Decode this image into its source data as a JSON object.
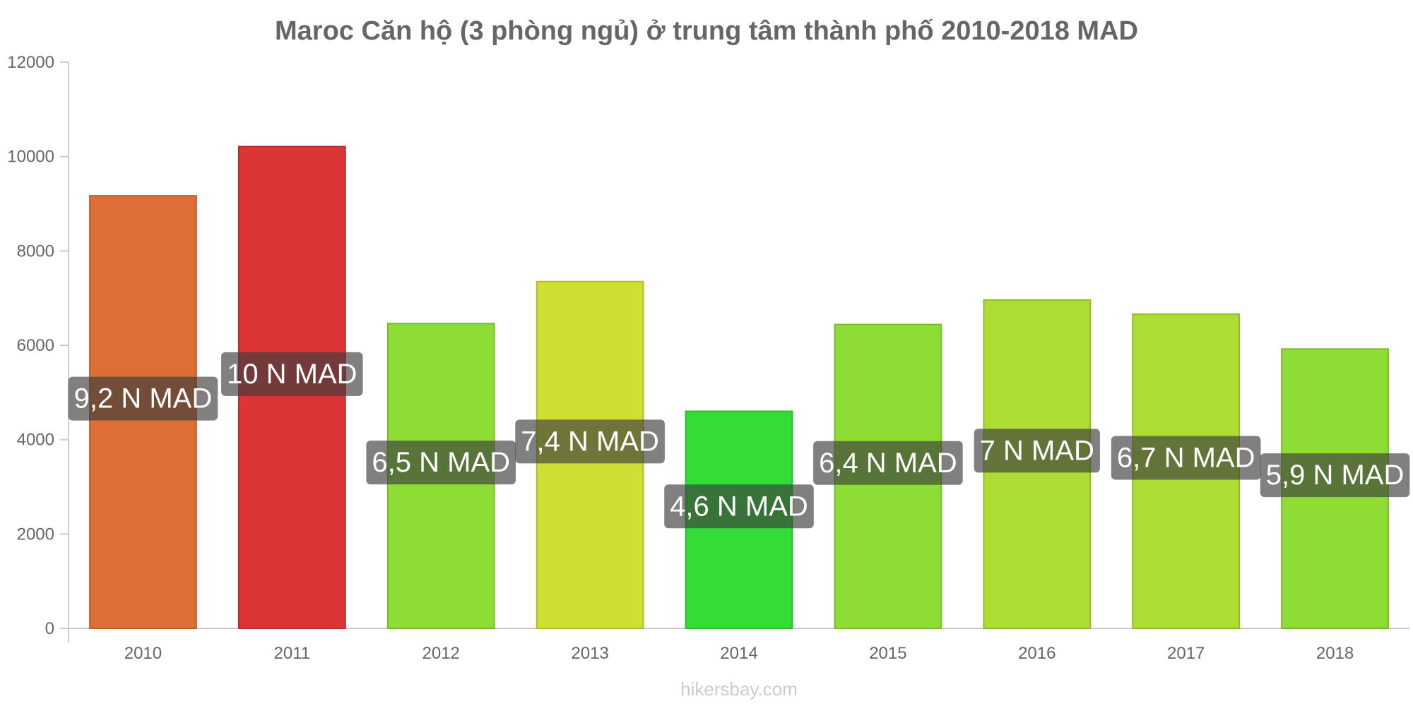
{
  "chart_data": {
    "type": "bar",
    "title": "Maroc Căn hộ (3 phòng ngủ) ở trung tâm thành phố 2010-2018 MAD",
    "categories": [
      "2010",
      "2011",
      "2012",
      "2013",
      "2014",
      "2015",
      "2016",
      "2017",
      "2018"
    ],
    "values": [
      9170,
      10210,
      6460,
      7350,
      4600,
      6440,
      6960,
      6660,
      5920
    ],
    "data_labels": [
      "9,2 N MAD",
      "10 N MAD",
      "6,5 N MAD",
      "7,4 N MAD",
      "4,6 N MAD",
      "6,4 N MAD",
      "7 N MAD",
      "6,7 N MAD",
      "5,9 N MAD"
    ],
    "colors": [
      "#dd6e35",
      "#dc3535",
      "#8ddd35",
      "#cfdd35",
      "#33dd35",
      "#8ddd35",
      "#addd35",
      "#addd35",
      "#8ddd35"
    ],
    "xlabel": "",
    "ylabel": "",
    "ylim": [
      0,
      12000
    ],
    "yticks": [
      0,
      2000,
      4000,
      6000,
      8000,
      10000,
      12000
    ],
    "grid": false,
    "legend": "none"
  },
  "footer": "hikersbay.com"
}
